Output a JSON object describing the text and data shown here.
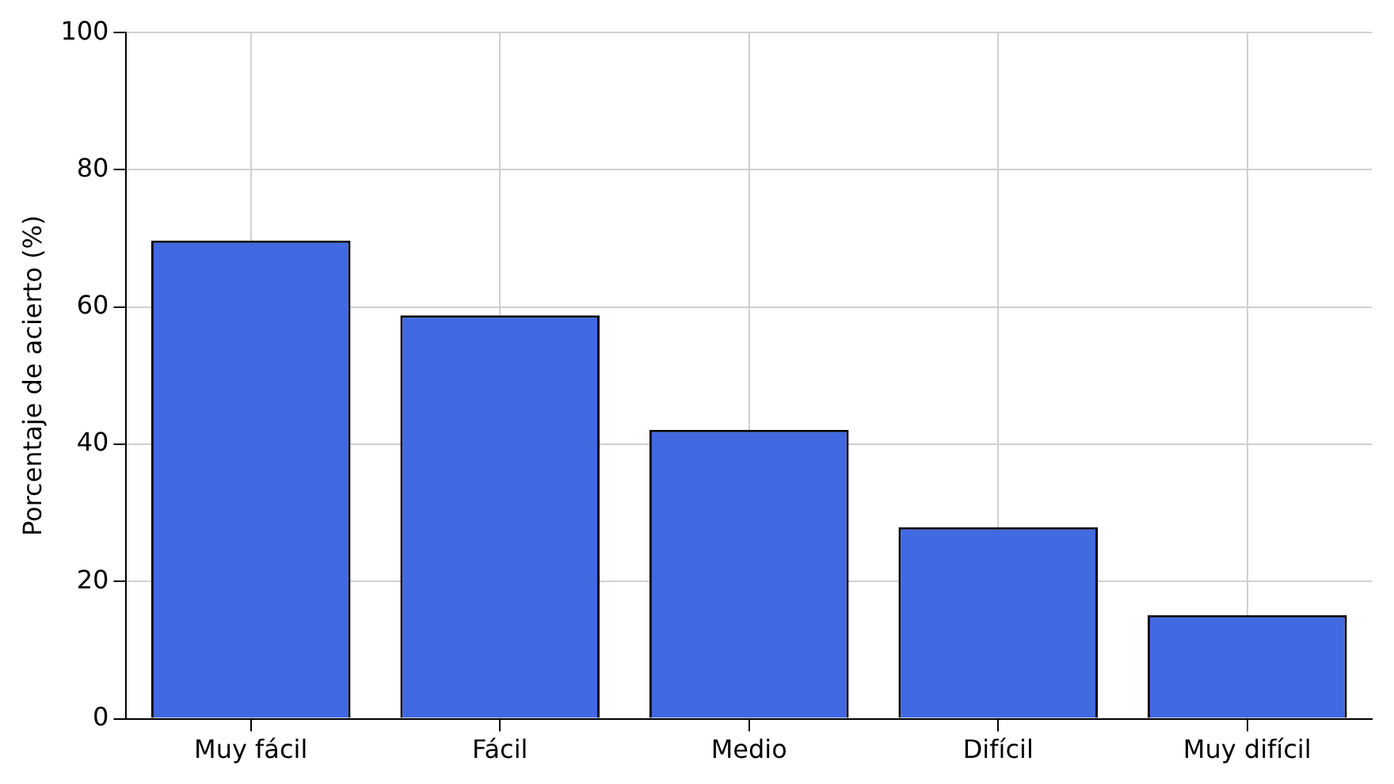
{
  "chart_data": {
    "type": "bar",
    "ylabel": "Porcentaje de acierto (%)",
    "categories": [
      "Muy fácil",
      "Fácil",
      "Medio",
      "Difícil",
      "Muy difícil"
    ],
    "values": [
      69.7,
      58.8,
      42.1,
      27.9,
      15.1
    ],
    "color": "#4169e1",
    "ylim": [
      0,
      100
    ],
    "yticks": [
      0,
      20,
      40,
      60,
      80,
      100
    ],
    "grid": true
  }
}
